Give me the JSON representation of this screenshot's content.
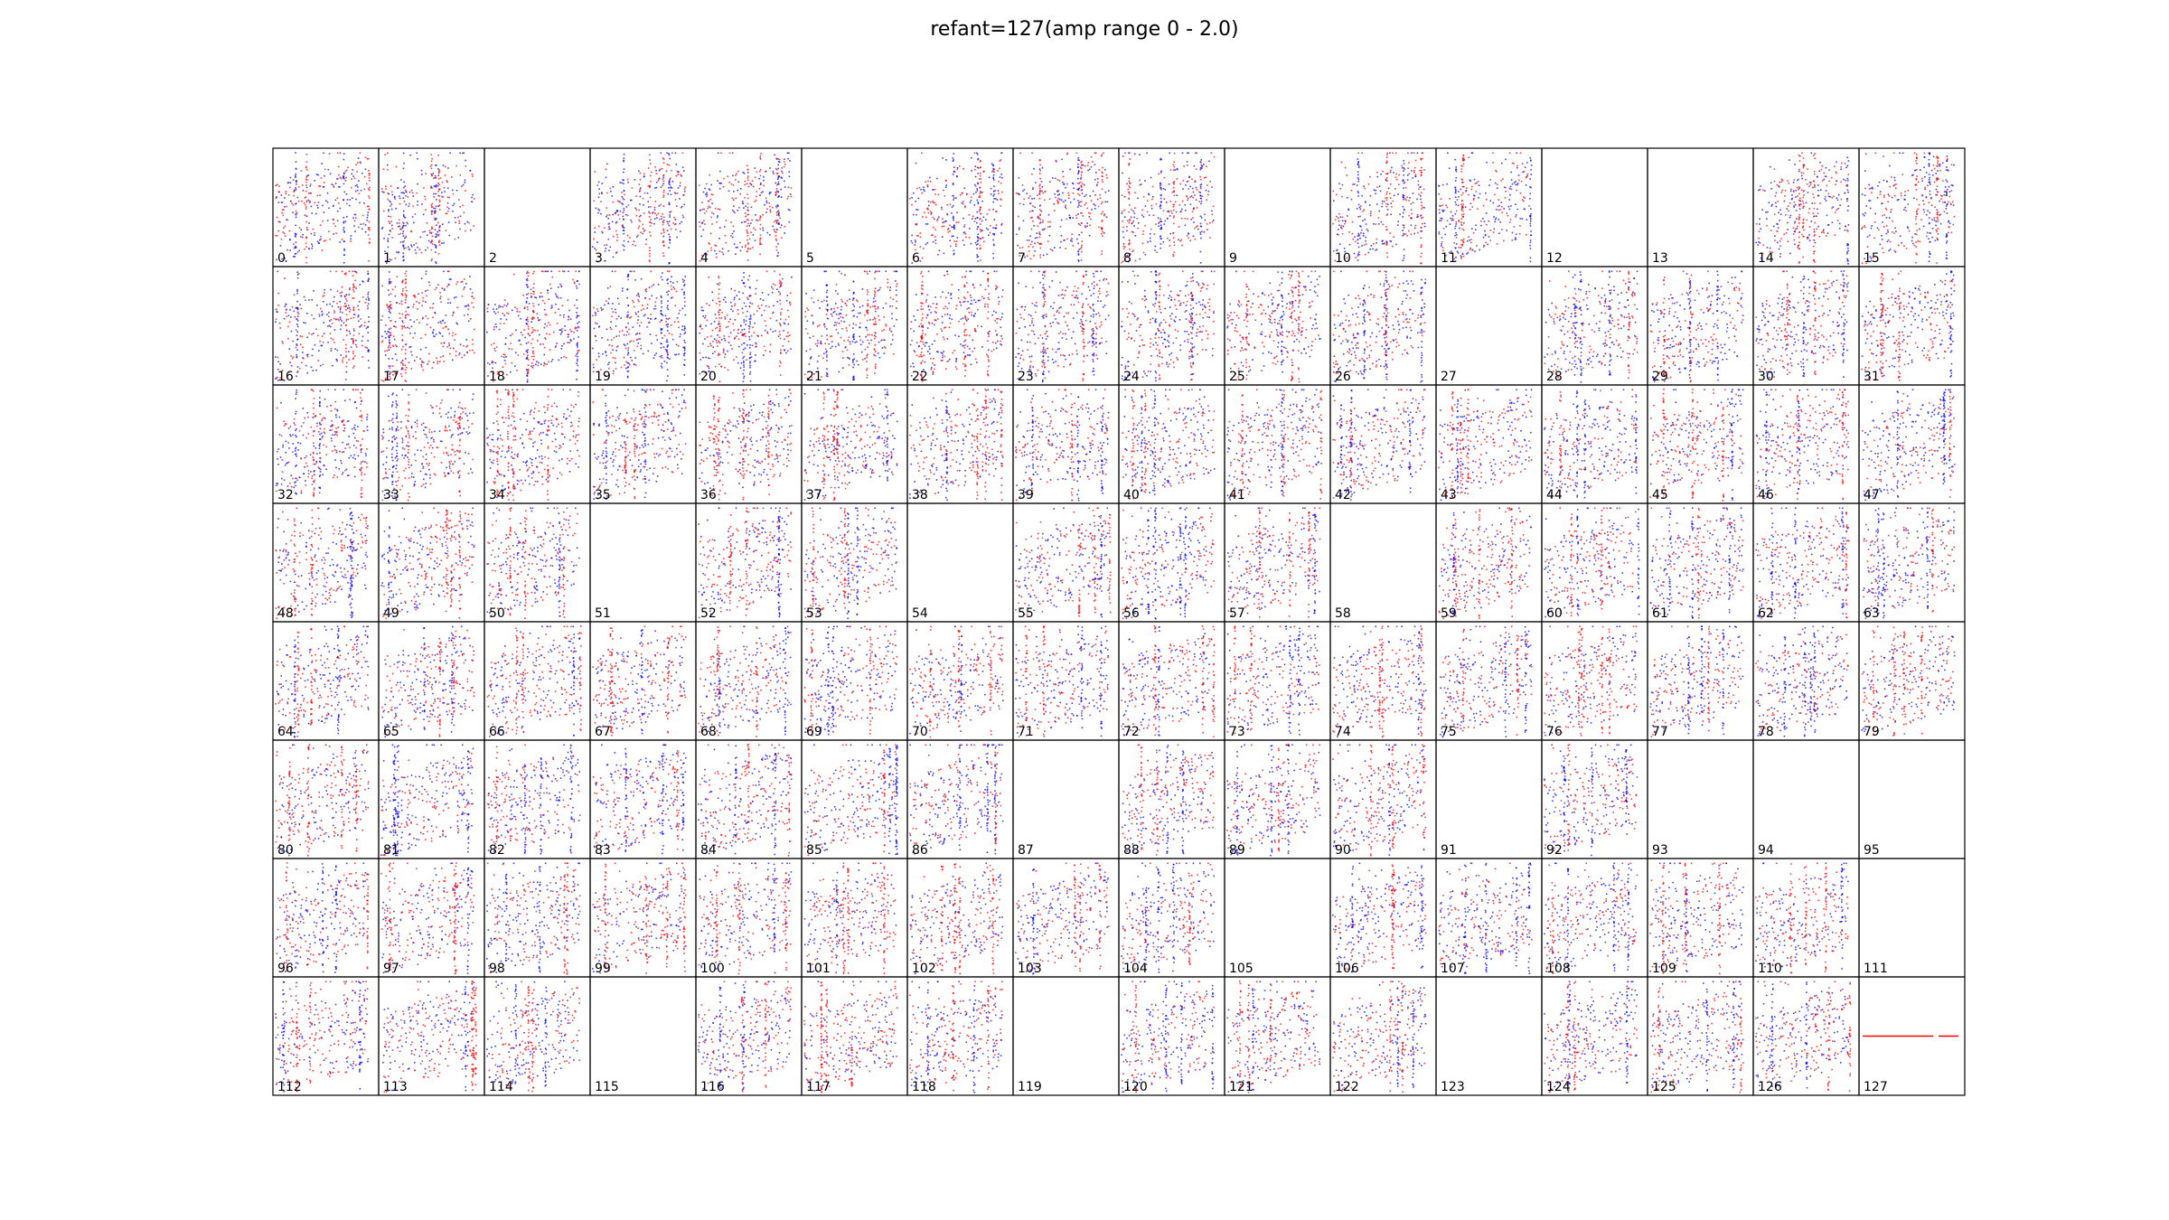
{
  "figure": {
    "title": "refant=127(amp range 0 - 2.0)"
  },
  "colors": {
    "pol1": "#0000ff",
    "pol2": "#ff0000",
    "frame": "#000000"
  },
  "chart_data": {
    "type": "scatter",
    "layout": "small-multiples",
    "grid": {
      "rows": 8,
      "cols": 16
    },
    "amp_range": [
      0,
      2.0
    ],
    "series": [
      {
        "name": "",
        "color": "#0000ff"
      },
      {
        "name": "",
        "color": "#ff0000"
      }
    ],
    "panels": [
      {
        "label": "0",
        "flagged": false
      },
      {
        "label": "1",
        "flagged": false
      },
      {
        "label": "2",
        "flagged": true
      },
      {
        "label": "3",
        "flagged": false
      },
      {
        "label": "4",
        "flagged": false
      },
      {
        "label": "5",
        "flagged": true
      },
      {
        "label": "6",
        "flagged": false
      },
      {
        "label": "7",
        "flagged": false
      },
      {
        "label": "8",
        "flagged": false
      },
      {
        "label": "9",
        "flagged": true
      },
      {
        "label": "10",
        "flagged": false
      },
      {
        "label": "11",
        "flagged": false
      },
      {
        "label": "12",
        "flagged": true
      },
      {
        "label": "13",
        "flagged": true
      },
      {
        "label": "14",
        "flagged": false
      },
      {
        "label": "15",
        "flagged": false
      },
      {
        "label": "16",
        "flagged": false
      },
      {
        "label": "17",
        "flagged": false
      },
      {
        "label": "18",
        "flagged": false
      },
      {
        "label": "19",
        "flagged": false
      },
      {
        "label": "20",
        "flagged": false
      },
      {
        "label": "21",
        "flagged": false
      },
      {
        "label": "22",
        "flagged": false
      },
      {
        "label": "23",
        "flagged": false
      },
      {
        "label": "24",
        "flagged": false
      },
      {
        "label": "25",
        "flagged": false
      },
      {
        "label": "26",
        "flagged": false
      },
      {
        "label": "27",
        "flagged": true
      },
      {
        "label": "28",
        "flagged": false
      },
      {
        "label": "29",
        "flagged": false
      },
      {
        "label": "30",
        "flagged": false
      },
      {
        "label": "31",
        "flagged": false
      },
      {
        "label": "32",
        "flagged": false
      },
      {
        "label": "33",
        "flagged": false
      },
      {
        "label": "34",
        "flagged": false
      },
      {
        "label": "35",
        "flagged": false
      },
      {
        "label": "36",
        "flagged": false
      },
      {
        "label": "37",
        "flagged": false
      },
      {
        "label": "38",
        "flagged": false
      },
      {
        "label": "39",
        "flagged": false
      },
      {
        "label": "40",
        "flagged": false
      },
      {
        "label": "41",
        "flagged": false
      },
      {
        "label": "42",
        "flagged": false
      },
      {
        "label": "43",
        "flagged": false
      },
      {
        "label": "44",
        "flagged": false
      },
      {
        "label": "45",
        "flagged": false
      },
      {
        "label": "46",
        "flagged": false
      },
      {
        "label": "47",
        "flagged": false
      },
      {
        "label": "48",
        "flagged": false
      },
      {
        "label": "49",
        "flagged": false
      },
      {
        "label": "50",
        "flagged": false
      },
      {
        "label": "51",
        "flagged": true
      },
      {
        "label": "52",
        "flagged": false
      },
      {
        "label": "53",
        "flagged": false
      },
      {
        "label": "54",
        "flagged": true
      },
      {
        "label": "55",
        "flagged": false
      },
      {
        "label": "56",
        "flagged": false
      },
      {
        "label": "57",
        "flagged": false
      },
      {
        "label": "58",
        "flagged": true
      },
      {
        "label": "59",
        "flagged": false
      },
      {
        "label": "60",
        "flagged": false
      },
      {
        "label": "61",
        "flagged": false
      },
      {
        "label": "62",
        "flagged": false
      },
      {
        "label": "63",
        "flagged": false
      },
      {
        "label": "64",
        "flagged": false
      },
      {
        "label": "65",
        "flagged": false
      },
      {
        "label": "66",
        "flagged": false
      },
      {
        "label": "67",
        "flagged": false
      },
      {
        "label": "68",
        "flagged": false
      },
      {
        "label": "69",
        "flagged": false
      },
      {
        "label": "70",
        "flagged": false
      },
      {
        "label": "71",
        "flagged": false
      },
      {
        "label": "72",
        "flagged": false
      },
      {
        "label": "73",
        "flagged": false
      },
      {
        "label": "74",
        "flagged": false
      },
      {
        "label": "75",
        "flagged": false
      },
      {
        "label": "76",
        "flagged": false
      },
      {
        "label": "77",
        "flagged": false
      },
      {
        "label": "78",
        "flagged": false
      },
      {
        "label": "79",
        "flagged": false
      },
      {
        "label": "80",
        "flagged": false
      },
      {
        "label": "81",
        "flagged": false
      },
      {
        "label": "82",
        "flagged": false
      },
      {
        "label": "83",
        "flagged": false
      },
      {
        "label": "84",
        "flagged": false
      },
      {
        "label": "85",
        "flagged": false
      },
      {
        "label": "86",
        "flagged": false
      },
      {
        "label": "87",
        "flagged": true
      },
      {
        "label": "88",
        "flagged": false
      },
      {
        "label": "89",
        "flagged": false
      },
      {
        "label": "90",
        "flagged": false
      },
      {
        "label": "91",
        "flagged": true
      },
      {
        "label": "92",
        "flagged": false
      },
      {
        "label": "93",
        "flagged": true
      },
      {
        "label": "94",
        "flagged": true
      },
      {
        "label": "95",
        "flagged": true
      },
      {
        "label": "96",
        "flagged": false
      },
      {
        "label": "97",
        "flagged": false
      },
      {
        "label": "98",
        "flagged": false
      },
      {
        "label": "99",
        "flagged": false
      },
      {
        "label": "100",
        "flagged": false
      },
      {
        "label": "101",
        "flagged": false
      },
      {
        "label": "102",
        "flagged": false
      },
      {
        "label": "103",
        "flagged": false
      },
      {
        "label": "104",
        "flagged": false
      },
      {
        "label": "105",
        "flagged": true
      },
      {
        "label": "106",
        "flagged": false
      },
      {
        "label": "107",
        "flagged": false
      },
      {
        "label": "108",
        "flagged": false
      },
      {
        "label": "109",
        "flagged": false
      },
      {
        "label": "110",
        "flagged": false
      },
      {
        "label": "111",
        "flagged": true
      },
      {
        "label": "112",
        "flagged": false
      },
      {
        "label": "113",
        "flagged": false
      },
      {
        "label": "114",
        "flagged": false
      },
      {
        "label": "115",
        "flagged": true
      },
      {
        "label": "116",
        "flagged": false
      },
      {
        "label": "117",
        "flagged": false
      },
      {
        "label": "118",
        "flagged": false
      },
      {
        "label": "119",
        "flagged": true
      },
      {
        "label": "120",
        "flagged": false
      },
      {
        "label": "121",
        "flagged": false
      },
      {
        "label": "122",
        "flagged": false
      },
      {
        "label": "123",
        "flagged": true
      },
      {
        "label": "124",
        "flagged": false
      },
      {
        "label": "125",
        "flagged": false
      },
      {
        "label": "126",
        "flagged": false
      },
      {
        "label": "127",
        "flagged": false,
        "reference": true
      }
    ]
  }
}
